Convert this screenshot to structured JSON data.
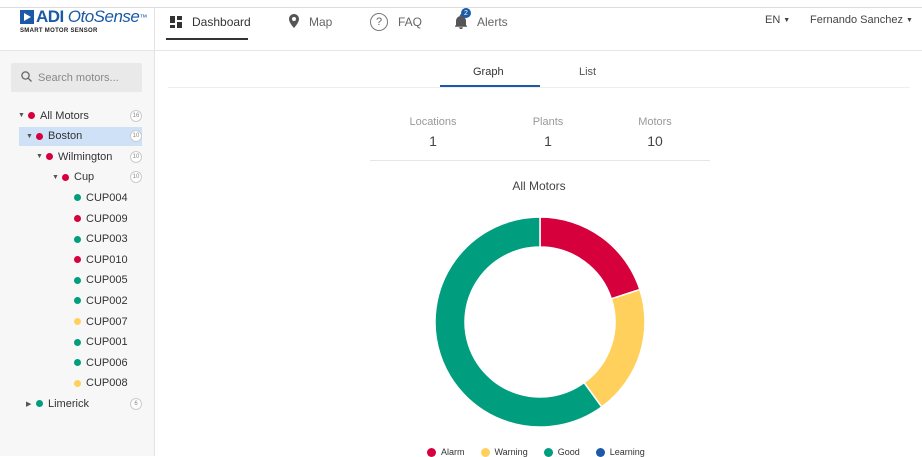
{
  "brand": {
    "name": "ADI",
    "product": "OtoSense",
    "tm": "™",
    "tagline": "SMART MOTOR SENSOR"
  },
  "nav": {
    "dashboard": "Dashboard",
    "map": "Map",
    "faq": "FAQ",
    "alerts": "Alerts",
    "alerts_badge": "2",
    "language": "EN",
    "user": "Fernando Sanchez"
  },
  "sidebar": {
    "search_placeholder": "Search motors...",
    "tree": [
      {
        "label": "All Motors",
        "count": "16",
        "status": "alarm",
        "expanded": true
      },
      {
        "label": "Boston",
        "count": "10",
        "status": "alarm",
        "expanded": true
      },
      {
        "label": "Wilmington",
        "count": "10",
        "status": "alarm",
        "expanded": true
      },
      {
        "label": "Cup",
        "count": "10",
        "status": "alarm",
        "expanded": true
      },
      {
        "label": "CUP004",
        "status": "good"
      },
      {
        "label": "CUP009",
        "status": "alarm"
      },
      {
        "label": "CUP003",
        "status": "good"
      },
      {
        "label": "CUP010",
        "status": "alarm"
      },
      {
        "label": "CUP005",
        "status": "good"
      },
      {
        "label": "CUP002",
        "status": "good"
      },
      {
        "label": "CUP007",
        "status": "warning"
      },
      {
        "label": "CUP001",
        "status": "good"
      },
      {
        "label": "CUP006",
        "status": "good"
      },
      {
        "label": "CUP008",
        "status": "warning"
      },
      {
        "label": "Limerick",
        "count": "6",
        "status": "good",
        "expanded": false
      }
    ]
  },
  "tabs": {
    "graph": "Graph",
    "list": "List"
  },
  "stats": [
    {
      "label": "Locations",
      "value": "1"
    },
    {
      "label": "Plants",
      "value": "1"
    },
    {
      "label": "Motors",
      "value": "10"
    }
  ],
  "colors": {
    "alarm": "#d6003c",
    "warning": "#ffd15c",
    "good": "#009e7e",
    "learning": "#1a5aa6",
    "accent": "#1a5aa6"
  },
  "chart_data": {
    "type": "pie",
    "title": "All Motors",
    "categories": [
      "Alarm",
      "Warning",
      "Good",
      "Learning"
    ],
    "values": [
      2,
      2,
      6,
      0
    ],
    "legend": "bottom"
  }
}
